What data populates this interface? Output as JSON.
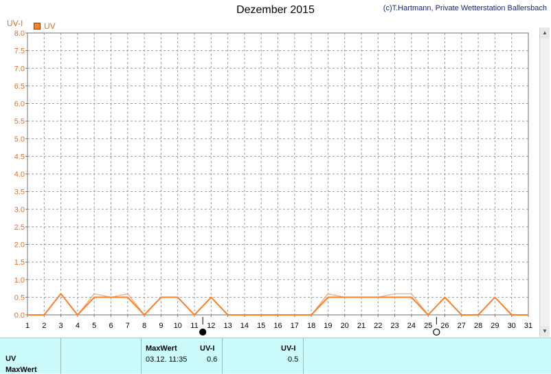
{
  "title": "Dezember 2015",
  "credit": "(c)T.Hartmann, Private Wetterstation Ballersbach",
  "colors": {
    "series_main": "#ff7f27",
    "series_secondary": "#f4a070",
    "axis_text": "#e07028",
    "panel_bg": "#ccfbfb"
  },
  "chart_data": {
    "type": "line",
    "ylabel": "UV-I",
    "xlim": [
      1,
      31
    ],
    "ylim": [
      0,
      8
    ],
    "x_ticks": [
      "1",
      "2",
      "3",
      "4",
      "5",
      "6",
      "7",
      "8",
      "9",
      "10",
      "11",
      "12",
      "13",
      "14",
      "15",
      "16",
      "17",
      "18",
      "19",
      "20",
      "21",
      "22",
      "23",
      "24",
      "25",
      "26",
      "27",
      "28",
      "29",
      "30",
      "31"
    ],
    "y_ticks": [
      "0.0",
      "0.5",
      "1.0",
      "1.5",
      "2.0",
      "2.5",
      "3.0",
      "3.5",
      "4.0",
      "4.5",
      "5.0",
      "5.5",
      "6.0",
      "6.5",
      "7.0",
      "7.5",
      "8.0"
    ],
    "grid": true,
    "legend": {
      "position": "top-left"
    },
    "series": [
      {
        "name": "UV",
        "x": [
          1,
          2,
          3,
          4,
          5,
          6,
          7,
          8,
          9,
          10,
          11,
          12,
          13,
          14,
          15,
          16,
          17,
          18,
          19,
          20,
          21,
          22,
          23,
          24,
          25,
          26,
          27,
          28,
          29,
          30,
          31
        ],
        "values": [
          0,
          0,
          0.6,
          0,
          0.5,
          0.5,
          0.5,
          0,
          0.5,
          0.5,
          0,
          0.5,
          0,
          0,
          0,
          0,
          0,
          0,
          0.5,
          0.5,
          0.5,
          0.5,
          0.5,
          0.5,
          0,
          0.5,
          0,
          0,
          0.5,
          0,
          0
        ]
      },
      {
        "x": [
          1,
          2,
          3,
          4,
          5,
          6,
          7,
          8,
          9,
          10,
          11,
          12,
          13,
          14,
          15,
          16,
          17,
          18,
          19,
          20,
          21,
          22,
          23,
          24,
          25,
          26,
          27,
          28,
          29,
          30,
          31
        ],
        "values": [
          0,
          0,
          0.6,
          0,
          0.6,
          0.5,
          0.6,
          0,
          0.5,
          0.5,
          0,
          0.5,
          0,
          0,
          0,
          0,
          0,
          0,
          0.6,
          0.5,
          0.5,
          0.5,
          0.6,
          0.6,
          0,
          0.5,
          0,
          0,
          0.5,
          0,
          0
        ]
      }
    ],
    "moon_markers": [
      {
        "day": 11,
        "phase": "new"
      },
      {
        "day": 25,
        "phase": "full"
      }
    ]
  },
  "panel": {
    "row_labels": [
      "UV",
      "MaxWert"
    ],
    "max_header": "MaxWert",
    "unit_header_1": "UV-I",
    "max_time": "03.12.  11:35",
    "max_value": "0.6",
    "unit_header_2": "UV-I",
    "avg_value": "0.5"
  }
}
